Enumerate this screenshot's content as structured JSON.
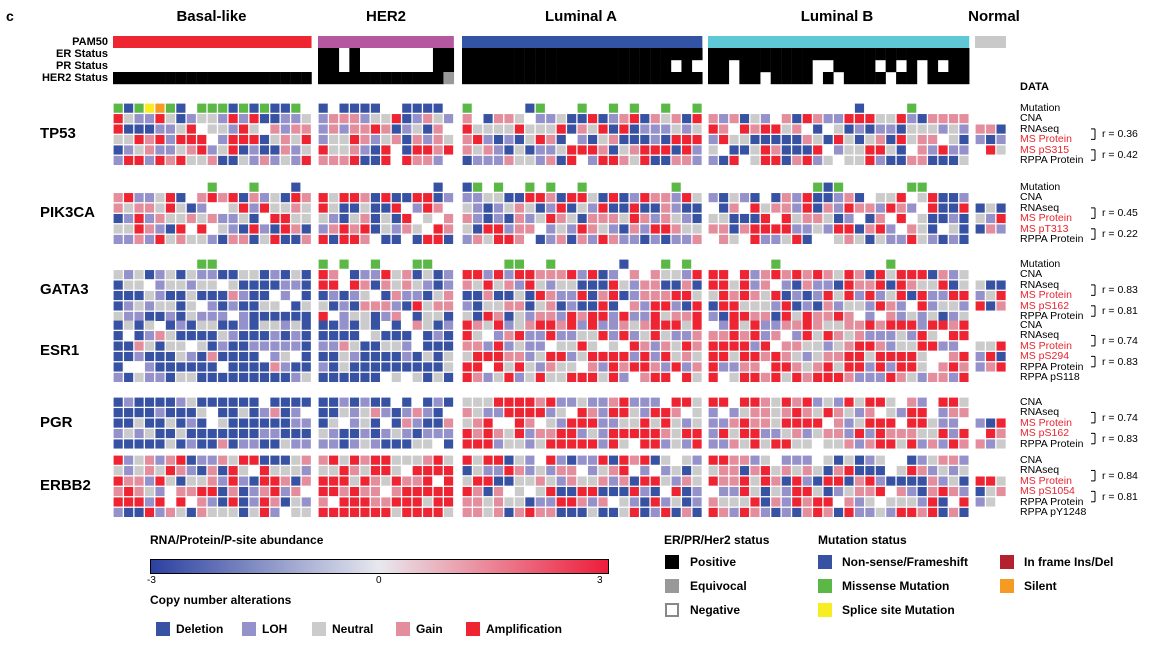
{
  "panel_letter": "c",
  "subtypes": [
    "Basal-like",
    "HER2",
    "Luminal A",
    "Luminal B",
    "Normal"
  ],
  "annotation_rows": [
    "PAM50",
    "ER Status",
    "PR Status",
    "HER2 Status"
  ],
  "data_header": "DATA",
  "colors": {
    "basal": "#ee2631",
    "her2": "#b6589f",
    "luminal_a": "#3353a4",
    "luminal_b": "#5ec8d7",
    "normal": "#c9c9c9",
    "deep_blue": "#3752a3",
    "light_blue": "#9592cb",
    "neutral": "#cbcbcb",
    "pink": "#e48e9d",
    "red": "#ef2433",
    "green": "#5bb847",
    "yellow": "#f7ed22",
    "orange": "#f59a22",
    "dark_red": "#b5202e",
    "positive": "#000000",
    "equivocal": "#999999"
  },
  "genes": [
    {
      "name": "TP53",
      "tracks": [
        {
          "label": "Mutation",
          "red": false
        },
        {
          "label": "CNA",
          "red": false
        },
        {
          "label": "RNAseq",
          "red": false
        },
        {
          "label": "MS Protein",
          "red": true
        },
        {
          "label": "MS pS315",
          "red": true
        },
        {
          "label": "RPPA Protein",
          "red": false
        }
      ],
      "correlations": [
        "r = 0.36",
        "r = 0.42"
      ]
    },
    {
      "name": "PIK3CA",
      "tracks": [
        {
          "label": "Mutation",
          "red": false
        },
        {
          "label": "CNA",
          "red": false
        },
        {
          "label": "RNAseq",
          "red": false
        },
        {
          "label": "MS Protein",
          "red": true
        },
        {
          "label": "MS pT313",
          "red": true
        },
        {
          "label": "RPPA Protein",
          "red": false
        }
      ],
      "correlations": [
        "r = 0.45",
        "r = 0.22"
      ]
    },
    {
      "name": "GATA3",
      "tracks": [
        {
          "label": "Mutation",
          "red": false
        },
        {
          "label": "CNA",
          "red": false
        },
        {
          "label": "RNAseq",
          "red": false
        },
        {
          "label": "MS Protein",
          "red": true
        },
        {
          "label": "MS pS162",
          "red": true
        },
        {
          "label": "RPPA Protein",
          "red": false
        }
      ],
      "correlations": [
        "r = 0.83",
        "r = 0.81"
      ]
    },
    {
      "name": "ESR1",
      "tracks": [
        {
          "label": "CNA",
          "red": false
        },
        {
          "label": "RNAseq",
          "red": false
        },
        {
          "label": "MS Protein",
          "red": true
        },
        {
          "label": "MS pS294",
          "red": true
        },
        {
          "label": "RPPA Protein",
          "red": false
        },
        {
          "label": "RPPA pS118",
          "red": false
        }
      ],
      "correlations": [
        "r = 0.74",
        "r = 0.83"
      ]
    },
    {
      "name": "PGR",
      "tracks": [
        {
          "label": "CNA",
          "red": false
        },
        {
          "label": "RNAseq",
          "red": false
        },
        {
          "label": "MS Protein",
          "red": true
        },
        {
          "label": "MS pS162",
          "red": true
        },
        {
          "label": "RPPA Protein",
          "red": false
        }
      ],
      "correlations": [
        "r = 0.74",
        "r = 0.83"
      ]
    },
    {
      "name": "ERBB2",
      "tracks": [
        {
          "label": "CNA",
          "red": false
        },
        {
          "label": "RNAseq",
          "red": false
        },
        {
          "label": "MS Protein",
          "red": true
        },
        {
          "label": "MS pS1054",
          "red": true
        },
        {
          "label": "RPPA Protein",
          "red": false
        },
        {
          "label": "RPPA pY1248",
          "red": false
        }
      ],
      "correlations": [
        "r = 0.84",
        "r = 0.81"
      ]
    }
  ],
  "legend": {
    "abundance_title": "RNA/Protein/P-site abundance",
    "scale_min": "-3",
    "scale_mid": "0",
    "scale_max": "3",
    "cna_title": "Copy number alterations",
    "cna_items": [
      "Deletion",
      "LOH",
      "Neutral",
      "Gain",
      "Amplification"
    ],
    "status_title": "ER/PR/Her2 status",
    "status_items": [
      "Positive",
      "Equivocal",
      "Negative"
    ],
    "mutation_title": "Mutation status",
    "mutation_items": [
      "Non-sense/Frameshift",
      "Missense Mutation",
      "Splice site Mutation",
      "In frame Ins/Del",
      "Silent"
    ]
  }
}
